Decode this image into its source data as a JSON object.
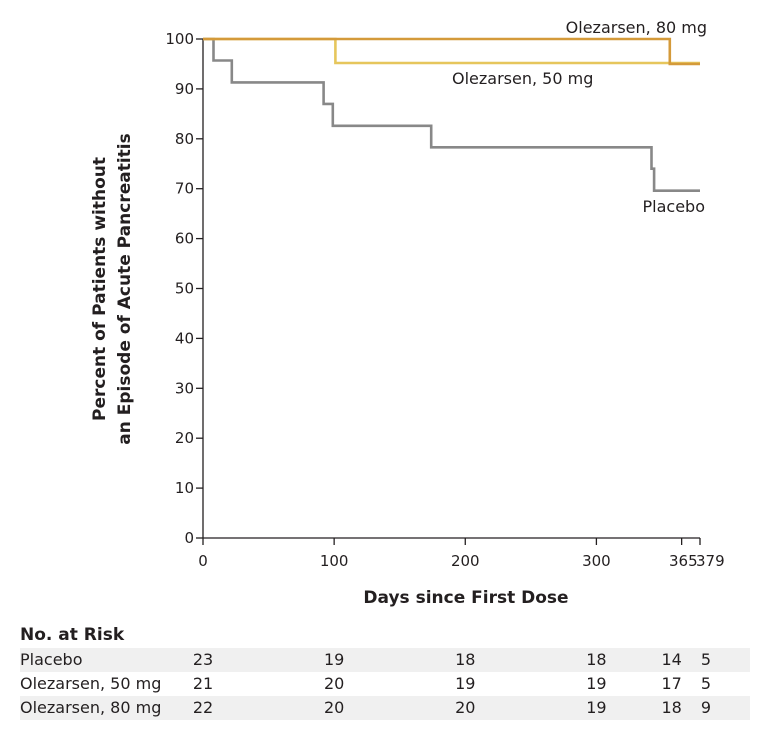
{
  "chart_data": {
    "type": "line",
    "step": true,
    "xlabel": "Days since First Dose",
    "ylabel": [
      "Percent of Patients without",
      "an Episode of Acute Pancreatitis"
    ],
    "xlim": [
      0,
      379
    ],
    "ylim": [
      0,
      100
    ],
    "x_ticks": [
      0,
      100,
      200,
      300,
      365,
      379
    ],
    "y_ticks": [
      0,
      10,
      20,
      30,
      40,
      50,
      60,
      70,
      80,
      90,
      100
    ],
    "series": [
      {
        "name": "Placebo",
        "color": "#888888",
        "points": [
          [
            0,
            100
          ],
          [
            8,
            100
          ],
          [
            8,
            95.7
          ],
          [
            22,
            95.7
          ],
          [
            22,
            91.3
          ],
          [
            92,
            91.3
          ],
          [
            92,
            87
          ],
          [
            99,
            87
          ],
          [
            99,
            82.6
          ],
          [
            174,
            82.6
          ],
          [
            174,
            78.3
          ],
          [
            342,
            78.3
          ],
          [
            342,
            74
          ],
          [
            344,
            74
          ],
          [
            344,
            69.6
          ],
          [
            379,
            69.6
          ]
        ]
      },
      {
        "name": "Olezarsen, 50 mg",
        "color": "#e6c65c",
        "points": [
          [
            0,
            100
          ],
          [
            101,
            100
          ],
          [
            101,
            95.2
          ],
          [
            379,
            95.2
          ]
        ]
      },
      {
        "name": "Olezarsen, 80 mg",
        "color": "#d49a3a",
        "points": [
          [
            0,
            100
          ],
          [
            356,
            100
          ],
          [
            356,
            95
          ],
          [
            379,
            95
          ]
        ]
      }
    ]
  },
  "risk_table": {
    "title": "No. at Risk",
    "columns_days": [
      0,
      100,
      200,
      300,
      365,
      379
    ],
    "rows": [
      {
        "name": "Placebo",
        "values": [
          "23",
          "19",
          "18",
          "18",
          "14",
          "5"
        ]
      },
      {
        "name": "Olezarsen, 50 mg",
        "values": [
          "21",
          "20",
          "19",
          "19",
          "17",
          "5"
        ]
      },
      {
        "name": "Olezarsen, 80 mg",
        "values": [
          "22",
          "20",
          "20",
          "19",
          "18",
          "9"
        ]
      }
    ]
  }
}
